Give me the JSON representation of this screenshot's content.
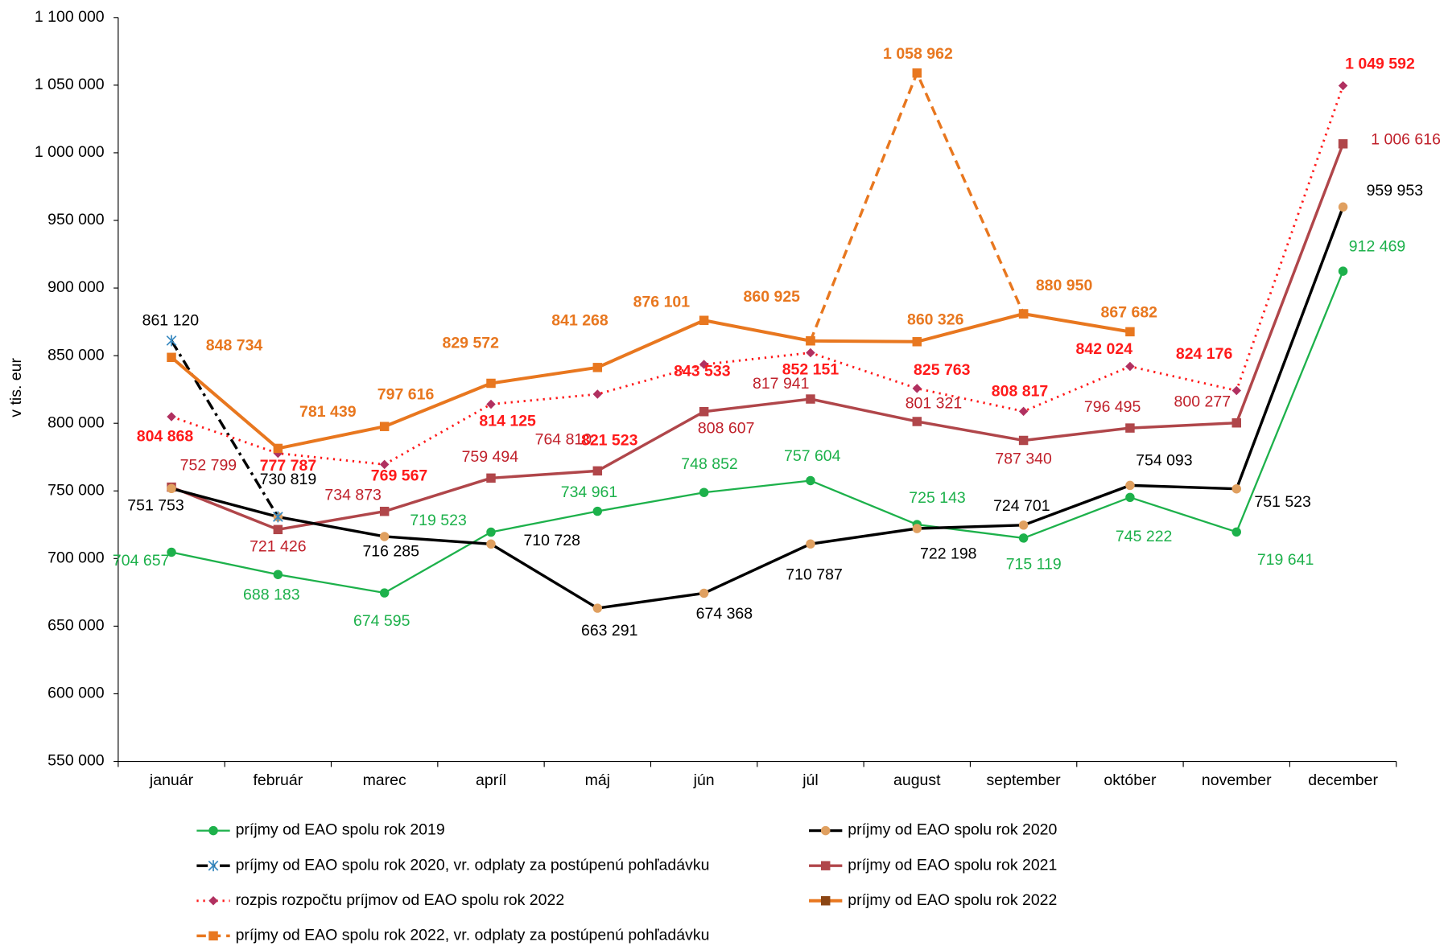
{
  "chart_data": {
    "type": "line",
    "y_label": "v tis. eur",
    "categories": [
      "január",
      "február",
      "marec",
      "apríl",
      "máj",
      "jún",
      "júl",
      "august",
      "september",
      "október",
      "november",
      "december"
    ],
    "ylim": [
      550000,
      1100000
    ],
    "yticks": [
      {
        "value": 550000,
        "label": "550 000"
      },
      {
        "value": 600000,
        "label": "600 000"
      },
      {
        "value": 650000,
        "label": "650 000"
      },
      {
        "value": 700000,
        "label": "700 000"
      },
      {
        "value": 750000,
        "label": "750 000"
      },
      {
        "value": 800000,
        "label": "800 000"
      },
      {
        "value": 850000,
        "label": "850 000"
      },
      {
        "value": 900000,
        "label": "900 000"
      },
      {
        "value": 950000,
        "label": "950 000"
      },
      {
        "value": 1000000,
        "label": "1 000 000"
      },
      {
        "value": 1050000,
        "label": "1 050 000"
      },
      {
        "value": 1100000,
        "label": "1 100 000"
      }
    ],
    "series": [
      {
        "name": "príjmy od EAO spolu rok 2019",
        "color": "#1db14b",
        "values": [
          704657,
          688183,
          674595,
          719523,
          734961,
          748852,
          757604,
          725143,
          715119,
          745222,
          719641,
          912469
        ],
        "value_labels": [
          "704 657",
          "688 183",
          "674 595",
          "719 523",
          "734 961",
          "748 852",
          "757 604",
          "725 143",
          "715 119",
          "745 222",
          "719 641",
          "912 469"
        ]
      },
      {
        "name": "príjmy od EAO spolu rok 2020",
        "color": "#000000",
        "values": [
          751753,
          730819,
          716285,
          710728,
          663291,
          674368,
          710787,
          722198,
          724701,
          754093,
          751523,
          959953
        ],
        "value_labels": [
          "751 753",
          "730 819",
          "716 285",
          "710 728",
          "663 291",
          "674 368",
          "710 787",
          "722 198",
          "724 701",
          "754 093",
          "751 523",
          "959 953"
        ]
      },
      {
        "name": "príjmy od EAO spolu rok 2020, vr. odplaty za postúpenú pohľadávku",
        "color": "#000000",
        "values": [
          861120,
          730819,
          null,
          null,
          null,
          null,
          null,
          null,
          null,
          null,
          null,
          null
        ],
        "value_labels": [
          "861 120",
          null,
          null,
          null,
          null,
          null,
          null,
          null,
          null,
          null,
          null,
          null
        ]
      },
      {
        "name": "príjmy od EAO spolu rok 2021",
        "color": "#b0464a",
        "values": [
          752799,
          721426,
          734873,
          759494,
          764810,
          808607,
          817941,
          801321,
          787340,
          796495,
          800277,
          1006616
        ],
        "value_labels": [
          "752 799",
          "721 426",
          "734 873",
          "759 494",
          "764 810",
          "808 607",
          "817 941",
          "801 321",
          "787 340",
          "796 495",
          "800 277",
          "1 006 616"
        ]
      },
      {
        "name": "rozpis rozpočtu príjmov od EAO spolu rok 2022",
        "color": "#ff1a1a",
        "values": [
          804868,
          777787,
          769567,
          814125,
          821523,
          843533,
          852151,
          825763,
          808817,
          842024,
          824176,
          1049592
        ],
        "value_labels": [
          "804 868",
          "777 787",
          "769 567",
          "814 125",
          "821 523",
          "843 533",
          "852 151",
          "825 763",
          "808 817",
          "842 024",
          "824 176",
          "1 049 592"
        ]
      },
      {
        "name": "príjmy od EAO spolu rok 2022",
        "color": "#e8771f",
        "values": [
          848734,
          781439,
          797616,
          829572,
          841268,
          876101,
          860925,
          860326,
          880950,
          867682,
          null,
          null
        ],
        "value_labels": [
          "848 734",
          "781 439",
          "797 616",
          "829 572",
          "841 268",
          "876 101",
          "860 925",
          "860 326",
          "880 950",
          "867 682",
          null,
          null
        ]
      },
      {
        "name": "príjmy od EAO spolu rok 2022, vr. odplaty za postúpenú pohľadávku",
        "color": "#e8771f",
        "values": [
          null,
          null,
          null,
          null,
          null,
          null,
          860925,
          1058962,
          880950,
          null,
          null,
          null
        ],
        "value_labels": [
          null,
          null,
          null,
          null,
          null,
          null,
          null,
          "1 058 962",
          null,
          null,
          null,
          null
        ]
      }
    ]
  }
}
